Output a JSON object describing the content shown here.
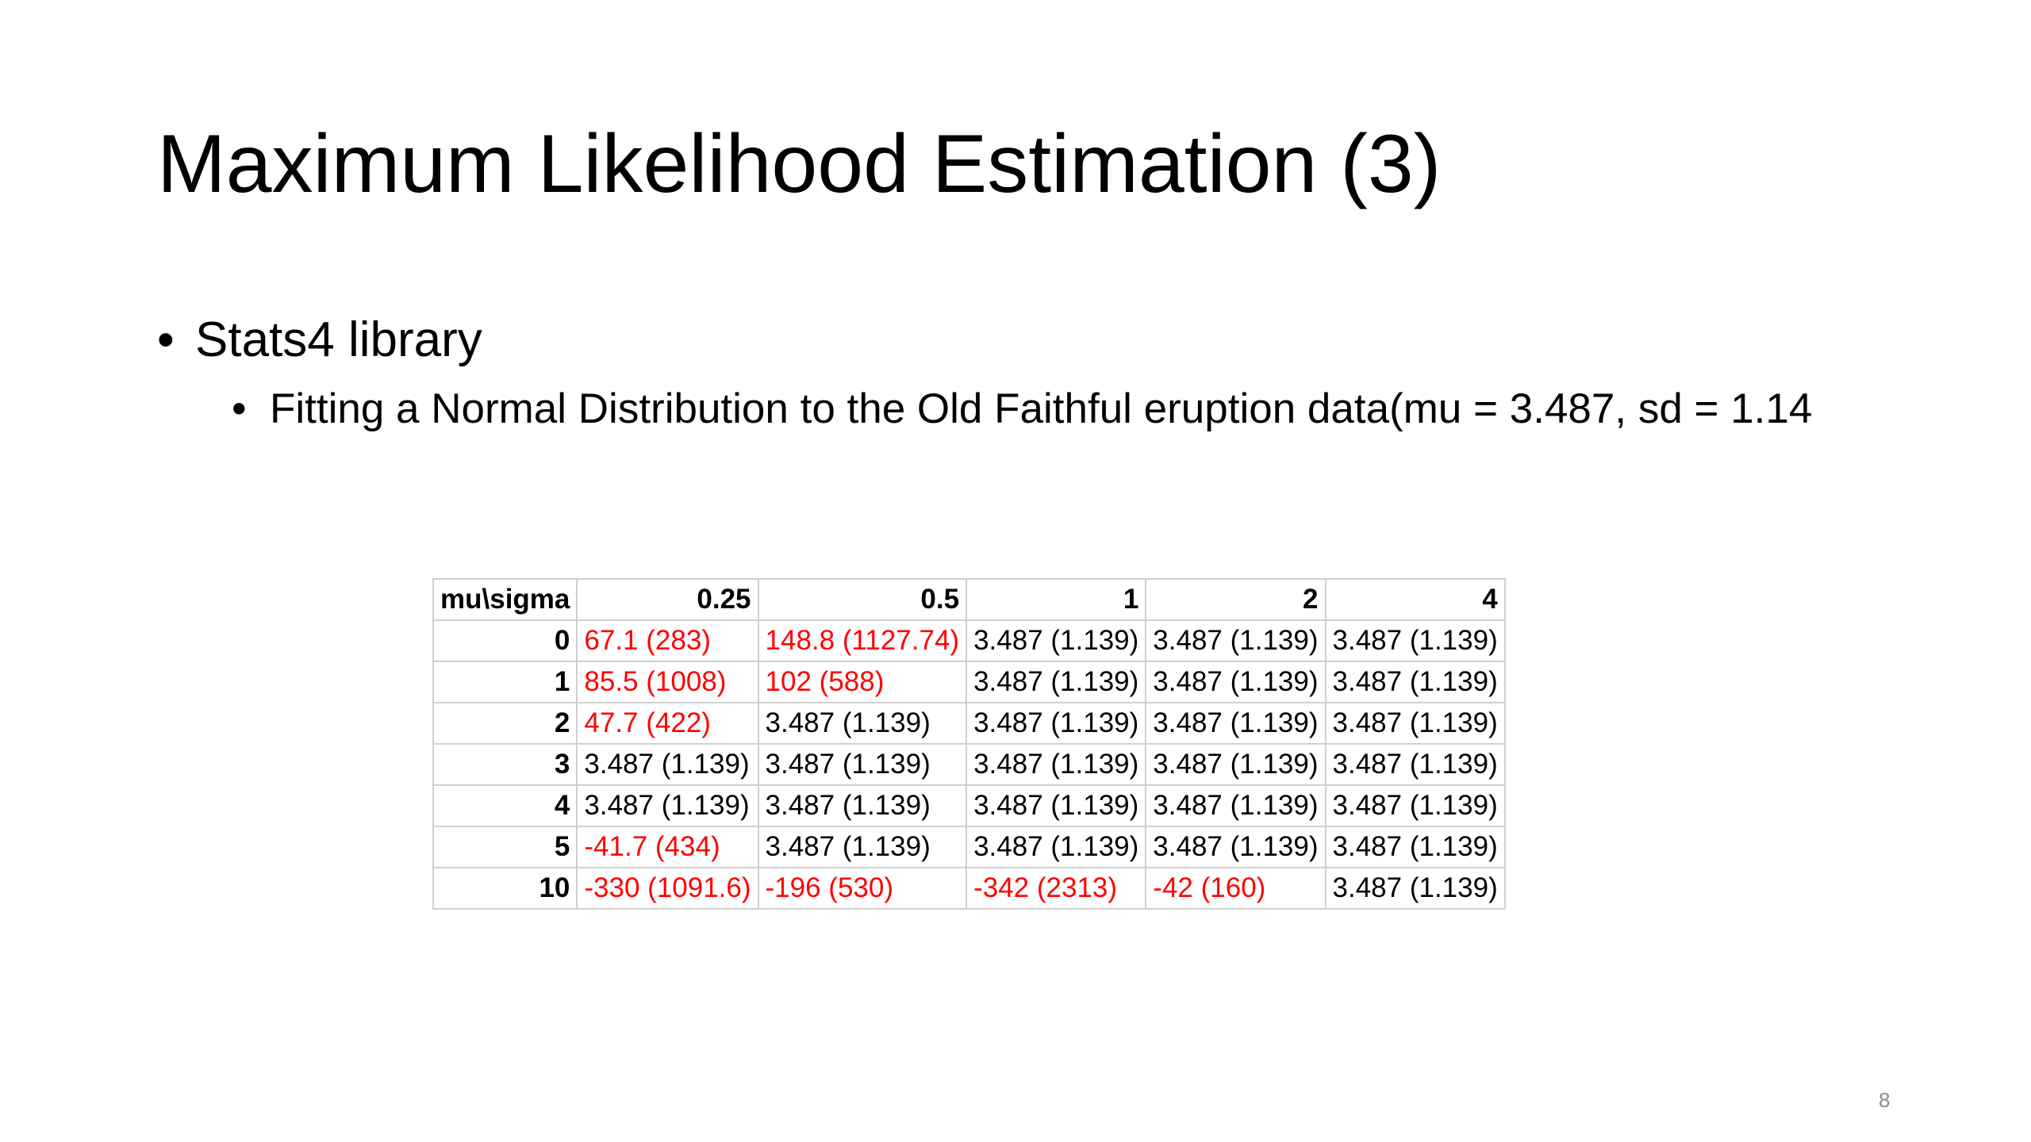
{
  "slide": {
    "title": "Maximum Likelihood Estimation (3)",
    "page_number": "8"
  },
  "bullets": {
    "level1": "Stats4 library",
    "level2": "Fitting a Normal Distribution to the Old Faithful eruption data(mu = 3.487, sd = 1.14"
  },
  "table": {
    "corner_header": "mu\\sigma",
    "column_headers": [
      "0.25",
      "0.5",
      "1",
      "2",
      "4"
    ],
    "rows": [
      {
        "label": "0",
        "cells": [
          {
            "text": "67.1 (283)",
            "red": true
          },
          {
            "text": "148.8 (1127.74)",
            "red": true
          },
          {
            "text": "3.487 (1.139)",
            "red": false
          },
          {
            "text": "3.487 (1.139)",
            "red": false
          },
          {
            "text": "3.487 (1.139)",
            "red": false
          }
        ]
      },
      {
        "label": "1",
        "cells": [
          {
            "text": "85.5 (1008)",
            "red": true
          },
          {
            "text": "102 (588)",
            "red": true
          },
          {
            "text": "3.487 (1.139)",
            "red": false
          },
          {
            "text": "3.487 (1.139)",
            "red": false
          },
          {
            "text": "3.487 (1.139)",
            "red": false
          }
        ]
      },
      {
        "label": "2",
        "cells": [
          {
            "text": "47.7 (422)",
            "red": true
          },
          {
            "text": "3.487 (1.139)",
            "red": false
          },
          {
            "text": "3.487 (1.139)",
            "red": false
          },
          {
            "text": "3.487 (1.139)",
            "red": false
          },
          {
            "text": "3.487 (1.139)",
            "red": false
          }
        ]
      },
      {
        "label": "3",
        "cells": [
          {
            "text": "3.487 (1.139)",
            "red": false
          },
          {
            "text": "3.487 (1.139)",
            "red": false
          },
          {
            "text": "3.487 (1.139)",
            "red": false
          },
          {
            "text": "3.487 (1.139)",
            "red": false
          },
          {
            "text": "3.487 (1.139)",
            "red": false
          }
        ]
      },
      {
        "label": "4",
        "cells": [
          {
            "text": "3.487 (1.139)",
            "red": false
          },
          {
            "text": "3.487 (1.139)",
            "red": false
          },
          {
            "text": "3.487 (1.139)",
            "red": false
          },
          {
            "text": "3.487 (1.139)",
            "red": false
          },
          {
            "text": "3.487 (1.139)",
            "red": false
          }
        ]
      },
      {
        "label": "5",
        "cells": [
          {
            "text": "-41.7 (434)",
            "red": true
          },
          {
            "text": "3.487 (1.139)",
            "red": false
          },
          {
            "text": "3.487 (1.139)",
            "red": false
          },
          {
            "text": "3.487 (1.139)",
            "red": false
          },
          {
            "text": "3.487 (1.139)",
            "red": false
          }
        ]
      },
      {
        "label": "10",
        "cells": [
          {
            "text": "-330 (1091.6)",
            "red": true
          },
          {
            "text": "-196 (530)",
            "red": true
          },
          {
            "text": "-342 (2313)",
            "red": true
          },
          {
            "text": "-42 (160)",
            "red": true
          },
          {
            "text": "3.487 (1.139)",
            "red": false
          }
        ]
      }
    ]
  },
  "colors": {
    "highlight_text": "#ff0000",
    "grid_line": "#d0d0d0",
    "page_number": "#8a8a8a"
  }
}
